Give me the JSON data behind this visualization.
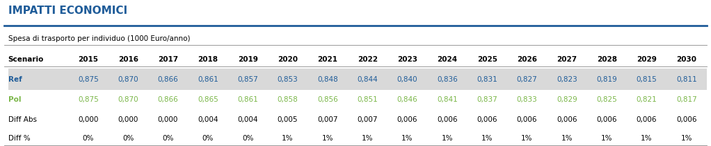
{
  "title": "IMPATTI ECONOMICI",
  "subtitle": "Spesa di trasporto per individuo (1000 Euro/anno)",
  "columns": [
    "Scenario",
    "2015",
    "2016",
    "2017",
    "2018",
    "2019",
    "2020",
    "2021",
    "2022",
    "2023",
    "2024",
    "2025",
    "2026",
    "2027",
    "2028",
    "2029",
    "2030"
  ],
  "rows": [
    {
      "label": "Ref",
      "color": "#1F5C99",
      "label_style": "bold",
      "bg": "#D9D9D9",
      "values": [
        "0,875",
        "0,870",
        "0,866",
        "0,861",
        "0,857",
        "0,853",
        "0,848",
        "0,844",
        "0,840",
        "0,836",
        "0,831",
        "0,827",
        "0,823",
        "0,819",
        "0,815",
        "0,811"
      ]
    },
    {
      "label": "Pol",
      "color": "#7AB648",
      "label_style": "bold",
      "bg": null,
      "values": [
        "0,875",
        "0,870",
        "0,866",
        "0,865",
        "0,861",
        "0,858",
        "0,856",
        "0,851",
        "0,846",
        "0,841",
        "0,837",
        "0,833",
        "0,829",
        "0,825",
        "0,821",
        "0,817"
      ]
    },
    {
      "label": "Diff Abs",
      "color": "#000000",
      "label_style": "normal",
      "bg": null,
      "values": [
        "0,000",
        "0,000",
        "0,000",
        "0,004",
        "0,004",
        "0,005",
        "0,007",
        "0,007",
        "0,006",
        "0,006",
        "0,006",
        "0,006",
        "0,006",
        "0,006",
        "0,006",
        "0,006"
      ]
    },
    {
      "label": "Diff %",
      "color": "#000000",
      "label_style": "normal",
      "bg": null,
      "values": [
        "0%",
        "0%",
        "0%",
        "0%",
        "0%",
        "1%",
        "1%",
        "1%",
        "1%",
        "1%",
        "1%",
        "1%",
        "1%",
        "1%",
        "1%",
        "1%"
      ]
    }
  ],
  "title_color": "#1F5C99",
  "header_color": "#000000",
  "line_color": "#1F5C99",
  "bg_color": "#FFFFFF",
  "ref_row_bg": "#D9D9D9"
}
